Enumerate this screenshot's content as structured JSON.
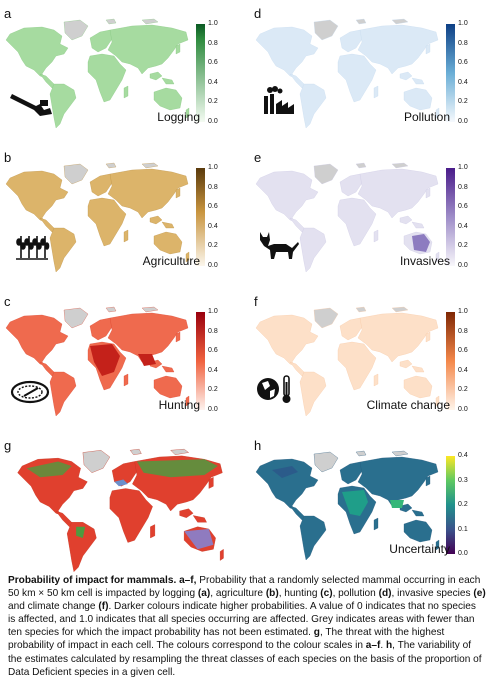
{
  "colorbar_ticks": [
    "1.0",
    "0.8",
    "0.6",
    "0.4",
    "0.2",
    "0.0"
  ],
  "uncertainty_ticks": [
    "0.4",
    "0.3",
    "0.2",
    "0.1",
    "0.0"
  ],
  "panels": {
    "a": {
      "letter": "a",
      "label": "Logging",
      "color": "#2e8b3e"
    },
    "b": {
      "letter": "b",
      "label": "Agriculture",
      "color": "#b07d28"
    },
    "c": {
      "letter": "c",
      "label": "Hunting",
      "color": "#d8301e"
    },
    "d": {
      "letter": "d",
      "label": "Pollution",
      "color": "#2f6fb0"
    },
    "e": {
      "letter": "e",
      "label": "Invasives",
      "color": "#6b4ea6"
    },
    "f": {
      "letter": "f",
      "label": "Climate change",
      "color": "#d65a1e"
    },
    "g": {
      "letter": "g",
      "label": ""
    },
    "h": {
      "letter": "h",
      "label": "Uncertainty"
    }
  },
  "caption": {
    "title": "Probability of impact for mammals. a–f,",
    "p1": " Probability that a randomly selected mammal occurring in each 50 km × 50 km cell is impacted by logging ",
    "l1": "(a)",
    "p2": ", agriculture ",
    "l2": "(b)",
    "p3": ", hunting ",
    "l3": "(c)",
    "p4": ", pollution ",
    "l4": "(d)",
    "p5": ", invasive species ",
    "l5": "(e)",
    "p6": " and climate change ",
    "l6": "(f)",
    "p7": ". Darker colours indicate higher probabilities. A value of 0 indicates that no species is affected, and 1.0 indicates that all species occurring are affected. Grey indicates areas with fewer than ten species for which the impact probability has not been estimated. ",
    "g_lead": "g",
    "p8": ", The threat with the highest probability of impact in each cell. The colours correspond to the colour scales in ",
    "af": "a–f",
    "p9": ". ",
    "h_lead": "h",
    "p10": ", The variability of the estimates calculated by resampling the threat classes of each species on the basis of the proportion of Data Deficient species in a given cell."
  }
}
